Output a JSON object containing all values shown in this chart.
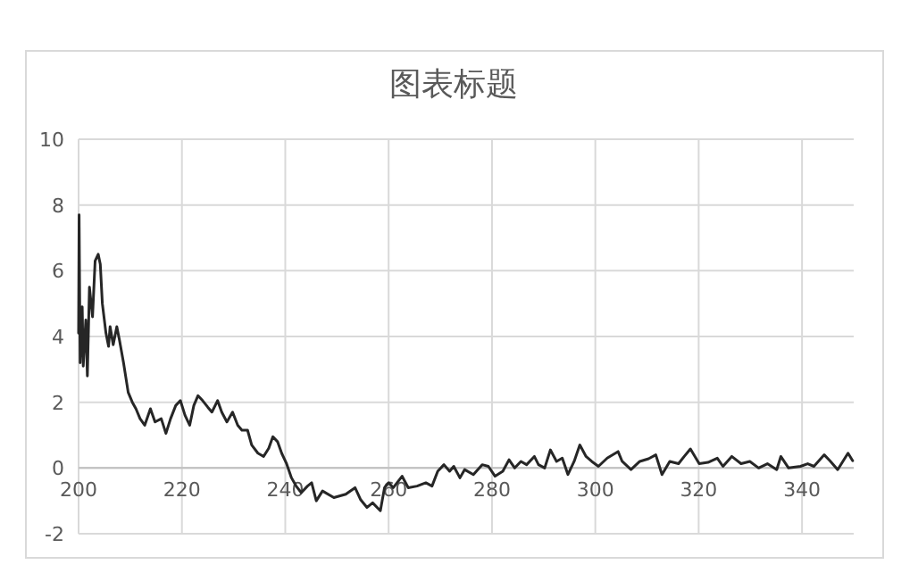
{
  "chart_data": {
    "type": "line",
    "title": "图表标题",
    "x": [
      200,
      200.1,
      200.3,
      200.7,
      200.9,
      201.4,
      201.7,
      202.1,
      202.7,
      203.2,
      203.8,
      204.2,
      204.6,
      205.3,
      205.8,
      206.1,
      206.7,
      207.4,
      207.9,
      208.7,
      209.6,
      210.4,
      211.1,
      211.9,
      212.8,
      213.9,
      214.8,
      216.0,
      216.9,
      217.8,
      218.8,
      219.7,
      220.6,
      221.5,
      222.3,
      223.1,
      224.0,
      225.0,
      225.8,
      226.9,
      227.7,
      228.7,
      229.8,
      230.8,
      231.6,
      232.7,
      233.5,
      234.7,
      235.8,
      236.8,
      237.6,
      238.5,
      239.3,
      240.2,
      241.2,
      242.1,
      243.1,
      244.3,
      245.1,
      246.0,
      247.2,
      249.4,
      251.7,
      253.5,
      254.6,
      255.8,
      256.9,
      258.4,
      259.2,
      260.0,
      260.9,
      262.6,
      263.8,
      265.5,
      267.2,
      268.4,
      269.5,
      270.7,
      271.8,
      272.6,
      273.8,
      274.7,
      276.4,
      278.1,
      279.3,
      280.6,
      282.1,
      283.3,
      284.4,
      285.6,
      286.7,
      288.2,
      289.0,
      290.2,
      291.3,
      292.5,
      293.6,
      294.7,
      295.9,
      297.0,
      298.2,
      299.3,
      300.6,
      302.3,
      304.4,
      305.2,
      306.9,
      308.6,
      310.3,
      311.7,
      312.9,
      314.4,
      316.1,
      317.2,
      318.4,
      320.1,
      321.8,
      323.6,
      324.7,
      326.4,
      328.2,
      329.9,
      331.6,
      333.3,
      335.1,
      335.9,
      337.4,
      339.7,
      341.1,
      342.3,
      344.3,
      345.4,
      346.9,
      348.9,
      349.8
    ],
    "values": [
      4.1,
      7.7,
      3.2,
      4.9,
      3.1,
      4.5,
      2.8,
      5.5,
      4.6,
      6.3,
      6.5,
      6.2,
      5.0,
      4.1,
      3.7,
      4.3,
      3.75,
      4.3,
      3.9,
      3.2,
      2.3,
      2.0,
      1.8,
      1.5,
      1.3,
      1.8,
      1.4,
      1.5,
      1.05,
      1.5,
      1.9,
      2.05,
      1.6,
      1.3,
      1.9,
      2.2,
      2.05,
      1.85,
      1.7,
      2.05,
      1.7,
      1.4,
      1.7,
      1.3,
      1.15,
      1.15,
      0.7,
      0.45,
      0.35,
      0.6,
      0.95,
      0.8,
      0.45,
      0.15,
      -0.3,
      -0.55,
      -0.75,
      -0.55,
      -0.45,
      -1.0,
      -0.7,
      -0.9,
      -0.8,
      -0.6,
      -0.97,
      -1.2,
      -1.06,
      -1.3,
      -0.6,
      -0.45,
      -0.6,
      -0.25,
      -0.6,
      -0.55,
      -0.45,
      -0.55,
      -0.1,
      0.1,
      -0.1,
      0.05,
      -0.3,
      -0.05,
      -0.2,
      0.1,
      0.05,
      -0.25,
      -0.1,
      0.25,
      0.0,
      0.2,
      0.1,
      0.35,
      0.1,
      0.0,
      0.55,
      0.2,
      0.3,
      -0.2,
      0.2,
      0.7,
      0.35,
      0.2,
      0.05,
      0.3,
      0.5,
      0.2,
      -0.05,
      0.2,
      0.28,
      0.4,
      -0.2,
      0.2,
      0.13,
      0.35,
      0.58,
      0.13,
      0.17,
      0.3,
      0.05,
      0.35,
      0.13,
      0.2,
      0.0,
      0.13,
      -0.05,
      0.35,
      0.0,
      0.05,
      0.13,
      0.05,
      0.4,
      0.22,
      -0.05,
      0.45,
      0.22
    ],
    "color": "#262626",
    "xlim": [
      200,
      350
    ],
    "ylim": [
      -2,
      10
    ],
    "xticks": [
      200,
      220,
      240,
      260,
      280,
      300,
      320,
      340
    ],
    "yticks": [
      -2,
      0,
      2,
      4,
      6,
      8,
      10
    ],
    "grid": true
  }
}
